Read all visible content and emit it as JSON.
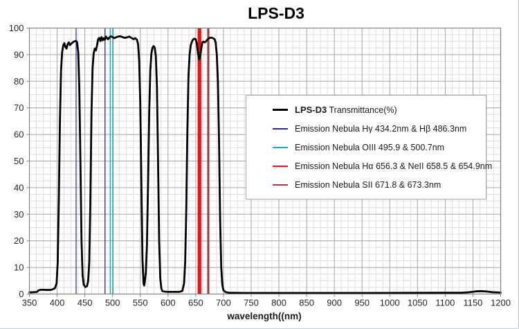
{
  "title": "LPS-D3",
  "chart_data": {
    "type": "line",
    "title": "LPS-D3",
    "xlabel": "wavelength((nm)",
    "ylabel": "",
    "xlim": [
      350,
      1200
    ],
    "ylim": [
      0,
      100
    ],
    "x_ticks": [
      350,
      400,
      450,
      500,
      550,
      600,
      650,
      700,
      750,
      800,
      850,
      900,
      950,
      1000,
      1050,
      1100,
      1150,
      1200
    ],
    "y_ticks": [
      0,
      10,
      20,
      30,
      40,
      50,
      60,
      70,
      80,
      90,
      100
    ],
    "x_minor_step": 12.5,
    "y_minor_step": 2.5,
    "grid": true,
    "colors": {
      "curve": "#000000",
      "major_grid": "#a3a3a3",
      "minor_grid": "#dedede",
      "plot_border": "#808080",
      "hgamma_hbeta": "#2222cc",
      "oiii": "#00b8c8",
      "halpha_neii": "#ee1111",
      "sii": "#9e3a3a"
    },
    "series": [
      {
        "name": "LPS-D3 Transmittance(%)",
        "color": "#000000",
        "width": 2.8,
        "points": [
          [
            350,
            0.6
          ],
          [
            358,
            0.7
          ],
          [
            364,
            0.8
          ],
          [
            366,
            1.3
          ],
          [
            370,
            1.6
          ],
          [
            376,
            1.6
          ],
          [
            382,
            1.5
          ],
          [
            390,
            1.6
          ],
          [
            396,
            2.2
          ],
          [
            399,
            4
          ],
          [
            401,
            12
          ],
          [
            403,
            35
          ],
          [
            405,
            65
          ],
          [
            407,
            84
          ],
          [
            409,
            91
          ],
          [
            411,
            93.5
          ],
          [
            413,
            94.3
          ],
          [
            415,
            92.8
          ],
          [
            417,
            92.3
          ],
          [
            419,
            94
          ],
          [
            421,
            94.6
          ],
          [
            423,
            93.6
          ],
          [
            425,
            94
          ],
          [
            428,
            94.6
          ],
          [
            431,
            95
          ],
          [
            434,
            95.2
          ],
          [
            436,
            94.6
          ],
          [
            438,
            91
          ],
          [
            440,
            78
          ],
          [
            442,
            50
          ],
          [
            444,
            20
          ],
          [
            446,
            7
          ],
          [
            448,
            3.5
          ],
          [
            451,
            2.6
          ],
          [
            454,
            3
          ],
          [
            456,
            5
          ],
          [
            458,
            12
          ],
          [
            460,
            35
          ],
          [
            462,
            68
          ],
          [
            464,
            85
          ],
          [
            466,
            90.5
          ],
          [
            468,
            92.3
          ],
          [
            470,
            91.6
          ],
          [
            472,
            93.5
          ],
          [
            474,
            95.8
          ],
          [
            476,
            96.3
          ],
          [
            478,
            95.1
          ],
          [
            480,
            96.6
          ],
          [
            482,
            95.4
          ],
          [
            484,
            96.2
          ],
          [
            486,
            95.6
          ],
          [
            488,
            96.8
          ],
          [
            490,
            96.2
          ],
          [
            492,
            95.8
          ],
          [
            494,
            96.4
          ],
          [
            497,
            96.9
          ],
          [
            500,
            96.6
          ],
          [
            503,
            96.2
          ],
          [
            506,
            96.5
          ],
          [
            510,
            96.8
          ],
          [
            514,
            96.9
          ],
          [
            518,
            96.6
          ],
          [
            522,
            96.3
          ],
          [
            526,
            96.5
          ],
          [
            530,
            96.8
          ],
          [
            534,
            96.3
          ],
          [
            538,
            95.8
          ],
          [
            541,
            96.2
          ],
          [
            544,
            95.6
          ],
          [
            546,
            94
          ],
          [
            548,
            88
          ],
          [
            550,
            72
          ],
          [
            552,
            42
          ],
          [
            554,
            13
          ],
          [
            556,
            3.8
          ],
          [
            557,
            3.2
          ],
          [
            558,
            4.2
          ],
          [
            560,
            8
          ],
          [
            562,
            18
          ],
          [
            564,
            42
          ],
          [
            566,
            68
          ],
          [
            568,
            84
          ],
          [
            570,
            90.5
          ],
          [
            572,
            92.6
          ],
          [
            574,
            93.2
          ],
          [
            576,
            92.6
          ],
          [
            578,
            89.5
          ],
          [
            580,
            78
          ],
          [
            582,
            50
          ],
          [
            584,
            20
          ],
          [
            586,
            6
          ],
          [
            588,
            2
          ],
          [
            590,
            1.1
          ],
          [
            594,
            0.9
          ],
          [
            600,
            0.8
          ],
          [
            610,
            0.8
          ],
          [
            620,
            0.8
          ],
          [
            626,
            1.2
          ],
          [
            629,
            4
          ],
          [
            631,
            12
          ],
          [
            633,
            32
          ],
          [
            635,
            62
          ],
          [
            637,
            82
          ],
          [
            639,
            90
          ],
          [
            641,
            93.5
          ],
          [
            644,
            95.3
          ],
          [
            647,
            96
          ],
          [
            650,
            95.8
          ],
          [
            652,
            94
          ],
          [
            654,
            90.5
          ],
          [
            656,
            88.2
          ],
          [
            658,
            89.3
          ],
          [
            660,
            92.5
          ],
          [
            662,
            94.6
          ],
          [
            664,
            94.9
          ],
          [
            666,
            94.6
          ],
          [
            668,
            94.9
          ],
          [
            670,
            95.4
          ],
          [
            672,
            95.9
          ],
          [
            675,
            96.3
          ],
          [
            678,
            96.4
          ],
          [
            681,
            96.2
          ],
          [
            684,
            95.8
          ],
          [
            686,
            94.5
          ],
          [
            688,
            90
          ],
          [
            690,
            80
          ],
          [
            692,
            58
          ],
          [
            694,
            28
          ],
          [
            696,
            10
          ],
          [
            698,
            3.5
          ],
          [
            700,
            1.4
          ],
          [
            704,
            0.7
          ],
          [
            710,
            0.5
          ],
          [
            720,
            0.45
          ],
          [
            740,
            0.4
          ],
          [
            780,
            0.4
          ],
          [
            850,
            0.4
          ],
          [
            950,
            0.4
          ],
          [
            1050,
            0.45
          ],
          [
            1100,
            0.5
          ],
          [
            1130,
            0.5
          ],
          [
            1145,
            0.7
          ],
          [
            1155,
            1.0
          ],
          [
            1165,
            1.1
          ],
          [
            1175,
            0.95
          ],
          [
            1185,
            0.7
          ],
          [
            1200,
            0.55
          ]
        ]
      }
    ],
    "emission_lines": [
      {
        "id": "hgamma-hbeta",
        "color": "#2222cc",
        "line_width": 1.2,
        "wavelengths": [
          434.2,
          486.3
        ]
      },
      {
        "id": "oiii",
        "color": "#00b8c8",
        "line_width": 1.6,
        "wavelengths": [
          495.9,
          500.7
        ]
      },
      {
        "id": "halpha-neii",
        "color": "#ee1111",
        "line_width": 2.4,
        "wavelengths": [
          654.9,
          656.3,
          658.5
        ]
      },
      {
        "id": "sii",
        "color": "#9e3a3a",
        "line_width": 1.7,
        "wavelengths": [
          671.8,
          673.3
        ]
      }
    ],
    "legend": {
      "position": "center-right",
      "entries": [
        {
          "id": "transmittance",
          "sample_color": "#000000",
          "sample_thickness": 3.5,
          "bold_label": "LPS-D3",
          "label": "Transmittance(%)"
        },
        {
          "id": "hgamma-hbeta",
          "sample_color": "#2222cc",
          "sample_thickness": 2,
          "label": "Emission Nebula  Hγ 434.2nm  &  Hβ 486.3nm"
        },
        {
          "id": "oiii",
          "sample_color": "#00b8c8",
          "sample_thickness": 2,
          "label": "Emission Nebula  OIII  495.9 & 500.7nm"
        },
        {
          "id": "halpha-neii",
          "sample_color": "#ee1111",
          "sample_thickness": 2,
          "label": "Emission Nebula  Hα 656.3 & NeII  658.5 & 654.9nm"
        },
        {
          "id": "sii",
          "sample_color": "#9e3a3a",
          "sample_thickness": 2,
          "label": "Emission Nebula  SII 671.8 & 673.3nm"
        }
      ]
    }
  }
}
